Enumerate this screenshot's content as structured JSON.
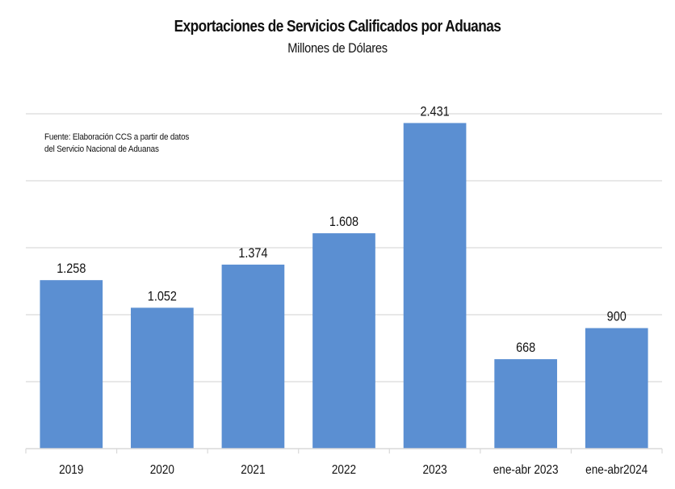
{
  "chart_data": {
    "type": "bar",
    "title": "Exportaciones de Servicios Calificados por Aduanas",
    "subtitle": "Millones de Dólares",
    "annotation": "Fuente: Elaboración CCS a partir de datos del Servicio Nacional de Aduanas",
    "annotation_lines": [
      "Fuente: Elaboración CCS a partir de datos",
      "del Servicio Nacional de Aduanas"
    ],
    "categories": [
      "2019",
      "2020",
      "2021",
      "2022",
      "2023",
      "ene-abr 2023",
      "ene-abr2024"
    ],
    "values": [
      1258,
      1052,
      1374,
      1608,
      2431,
      668,
      900
    ],
    "data_labels": [
      "1.258",
      "1.052",
      "1.374",
      "1.608",
      "2.431",
      "668",
      "900"
    ],
    "xlabel": "",
    "ylabel": "",
    "ylim": [
      0,
      2500
    ],
    "ytick_step": 500,
    "y_tick_labels_visible": false,
    "grid": true,
    "legend": "none",
    "bar_color": "#5b8fd2",
    "grid_color": "#d9d9d9"
  }
}
